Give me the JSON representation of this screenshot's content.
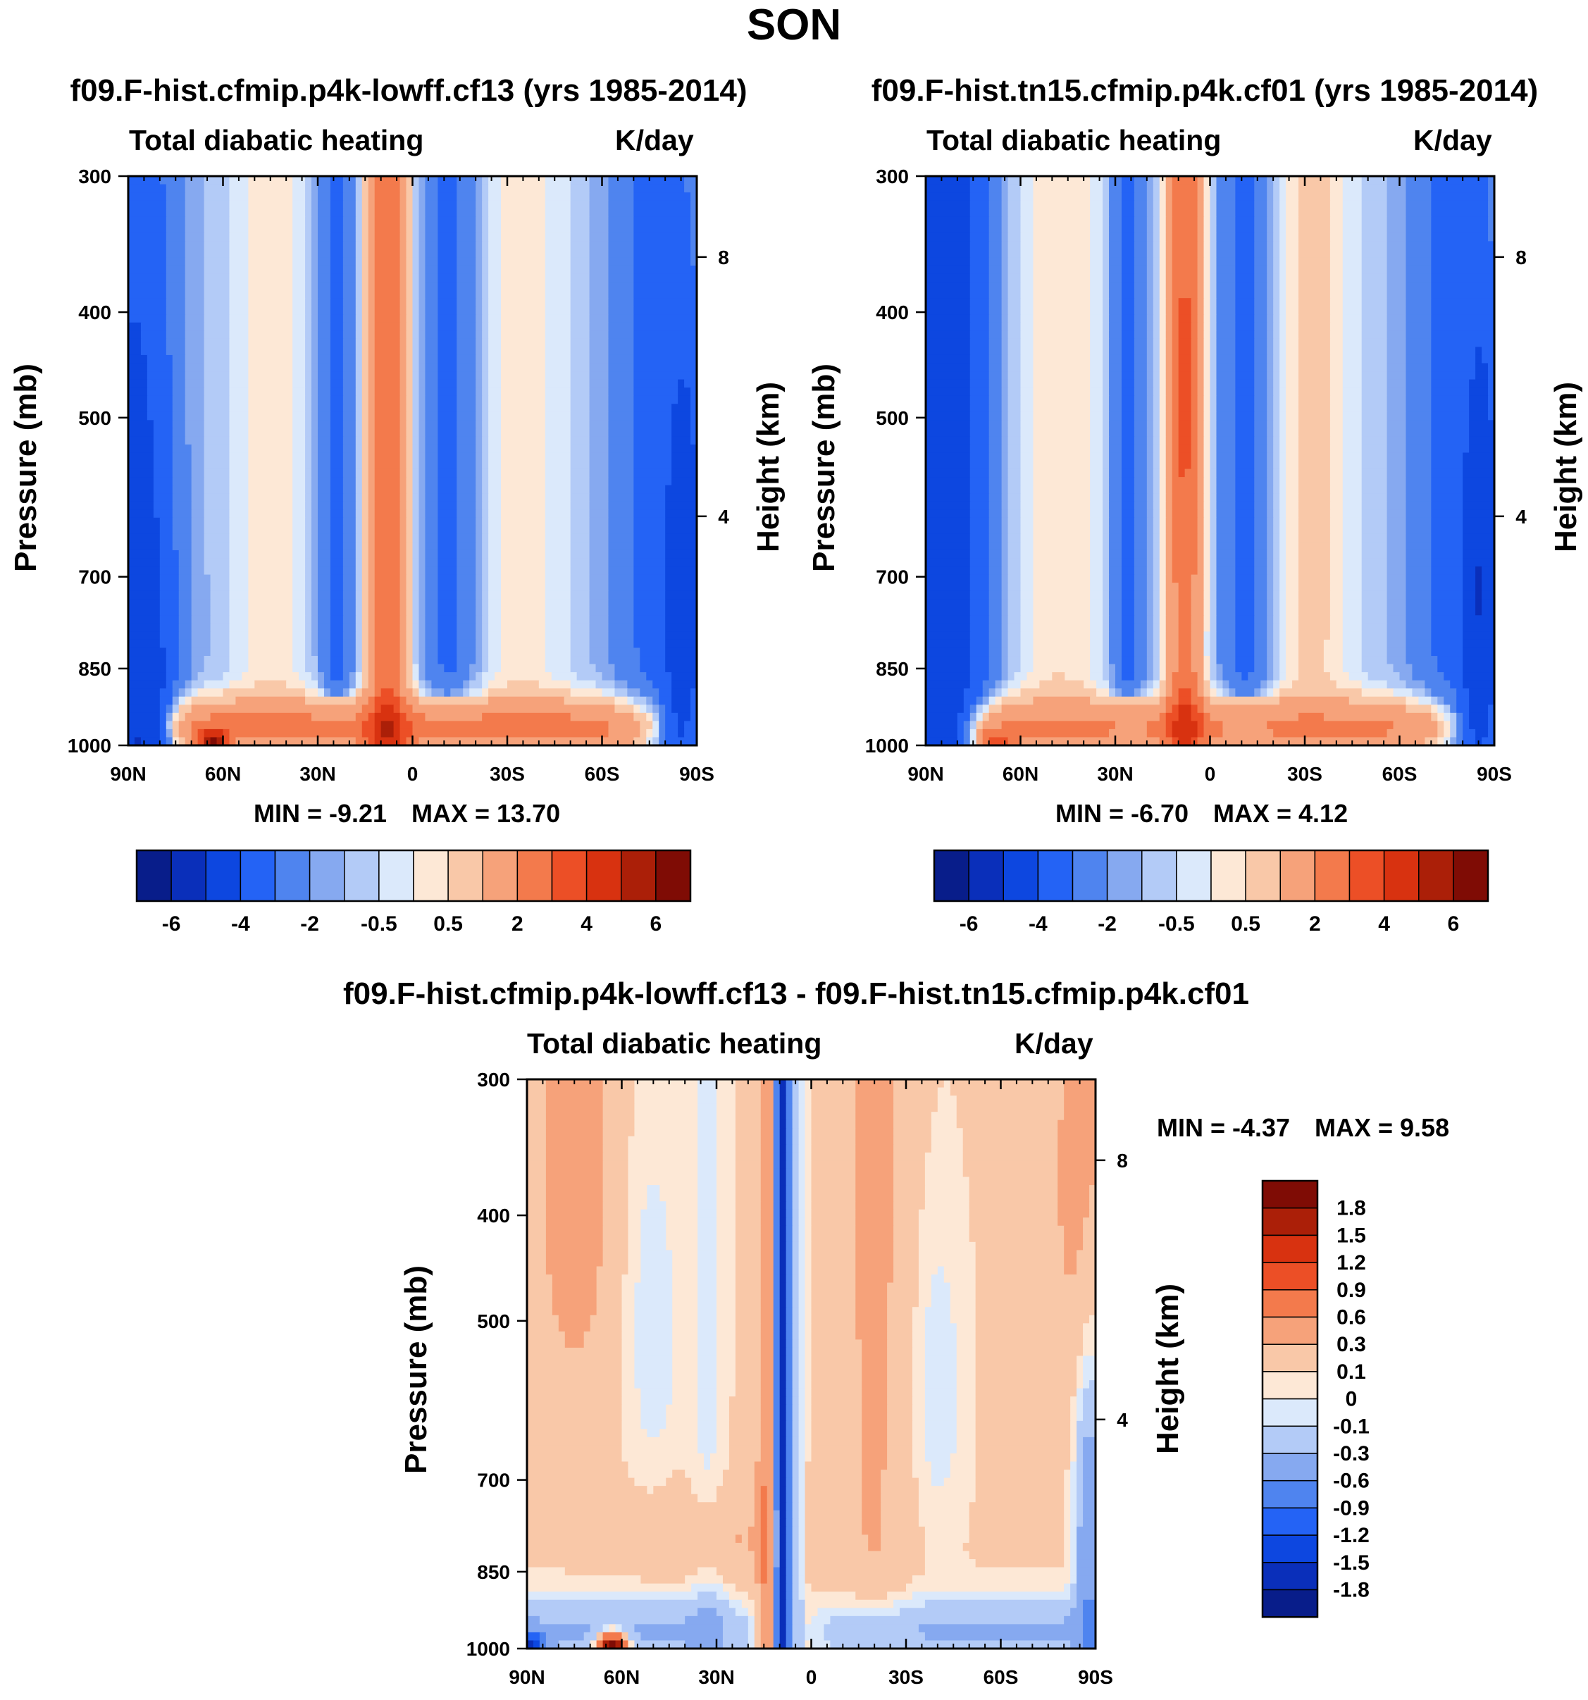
{
  "page": {
    "title": "SON"
  },
  "colors": {
    "panel_scale": [
      "#081d8a",
      "#0a2fba",
      "#0d47e0",
      "#2463f5",
      "#4f84ef",
      "#86a9f0",
      "#b3cbf7",
      "#dbe9fb",
      "#fde8d6",
      "#f9c8a8",
      "#f6a27a",
      "#f37a4c",
      "#ec4f26",
      "#d83210",
      "#ab1f08",
      "#7f0c05"
    ],
    "diff_scale": [
      "#081d8a",
      "#0a2fba",
      "#0d47e0",
      "#2463f5",
      "#4f84ef",
      "#86a9f0",
      "#b3cbf7",
      "#dbe9fb",
      "#fde8d6",
      "#f9c8a8",
      "#f6a27a",
      "#f37a4c",
      "#ec4f26",
      "#d83210",
      "#ab1f08",
      "#7f0c05"
    ]
  },
  "chart_data": [
    {
      "type": "heatmap",
      "title": "f09.F-hist.cfmip.p4k-lowff.cf13 (yrs 1985-2014)",
      "left_label": "Total diabatic heating",
      "right_label": "K/day",
      "ylabel": "Pressure (mb)",
      "y2label": "Height (km)",
      "x_ticks": [
        "90N",
        "60N",
        "30N",
        "0",
        "30S",
        "60S",
        "90S"
      ],
      "y_ticks": [
        "300",
        "400",
        "500",
        "700",
        "850",
        "1000"
      ],
      "y_tick_values": [
        300,
        400,
        500,
        700,
        850,
        1000
      ],
      "y2_ticks": [
        "8",
        "4"
      ],
      "ylim": [
        1000,
        300
      ],
      "xlim": [
        90,
        -90
      ],
      "min_text": "MIN =  -9.21",
      "max_text": "MAX =  13.70",
      "min": -9.21,
      "max": 13.7,
      "colorbar_labels": [
        "-6",
        "-4",
        "-2",
        "-0.5",
        "0.5",
        "2",
        "4",
        "6"
      ],
      "field": "p1"
    },
    {
      "type": "heatmap",
      "title": "f09.F-hist.tn15.cfmip.p4k.cf01 (yrs 1985-2014)",
      "left_label": "Total diabatic heating",
      "right_label": "K/day",
      "ylabel": "Pressure (mb)",
      "y2label": "Height (km)",
      "x_ticks": [
        "90N",
        "60N",
        "30N",
        "0",
        "30S",
        "60S",
        "90S"
      ],
      "y_ticks": [
        "300",
        "400",
        "500",
        "700",
        "850",
        "1000"
      ],
      "y_tick_values": [
        300,
        400,
        500,
        700,
        850,
        1000
      ],
      "y2_ticks": [
        "8",
        "4"
      ],
      "ylim": [
        1000,
        300
      ],
      "xlim": [
        90,
        -90
      ],
      "min_text": "MIN =  -6.70",
      "max_text": "MAX =   4.12",
      "min": -6.7,
      "max": 4.12,
      "colorbar_labels": [
        "-6",
        "-4",
        "-2",
        "-0.5",
        "0.5",
        "2",
        "4",
        "6"
      ],
      "field": "p2"
    },
    {
      "type": "heatmap",
      "title": "f09.F-hist.cfmip.p4k-lowff.cf13 - f09.F-hist.tn15.cfmip.p4k.cf01",
      "left_label": "Total diabatic heating",
      "right_label": "K/day",
      "ylabel": "Pressure (mb)",
      "y2label": "Height (km)",
      "x_ticks": [
        "90N",
        "60N",
        "30N",
        "0",
        "30S",
        "60S",
        "90S"
      ],
      "y_ticks": [
        "300",
        "400",
        "500",
        "700",
        "850",
        "1000"
      ],
      "y_tick_values": [
        300,
        400,
        500,
        700,
        850,
        1000
      ],
      "y2_ticks": [
        "8",
        "4"
      ],
      "ylim": [
        1000,
        300
      ],
      "xlim": [
        90,
        -90
      ],
      "min_text": "MIN =  -4.37",
      "max_text": "MAX =    9.58",
      "min": -4.37,
      "max": 9.58,
      "colorbar_labels": [
        "1.8",
        "1.5",
        "1.2",
        "0.9",
        "0.6",
        "0.3",
        "0.1",
        "0",
        "-0.1",
        "-0.3",
        "-0.6",
        "-0.9",
        "-1.2",
        "-1.5",
        "-1.8"
      ],
      "field": "diff"
    }
  ]
}
